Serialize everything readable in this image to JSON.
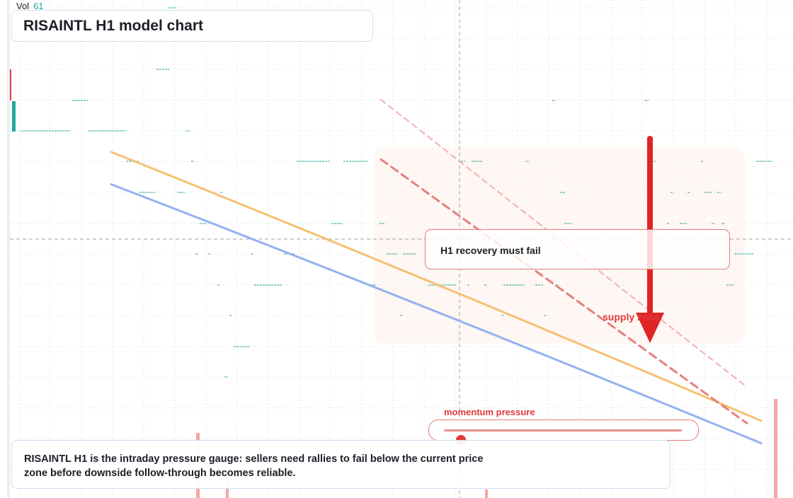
{
  "chart_data": {
    "type": "line",
    "symbol": "RISAINTL",
    "timeframe": "H1",
    "title": "RISAINTL H1 model chart",
    "volume_readout": {
      "label": "Vol",
      "value": 61
    },
    "series": [
      {
        "style": "solid",
        "color": "#f6c070",
        "y": [
          0.695,
          0.155
        ]
      },
      {
        "style": "solid",
        "color": "#94b1f0",
        "y": [
          0.63,
          0.11
        ]
      },
      {
        "style": "dashed",
        "color": "#e57f7f",
        "y": [
          0.68,
          0.15
        ]
      },
      {
        "style": "dashed",
        "color": "#f2b0b0",
        "y": [
          0.8,
          0.225
        ]
      }
    ],
    "annotations": {
      "callout": "H1 recovery must fail",
      "zone_label": "supply zone",
      "arrow_direction": "down",
      "gauge_label": "momentum pressure",
      "gauge_level": 0.07
    },
    "summary": "RISAINTL H1 is the intraday pressure gauge: sellers need rallies to fail below the current price zone before downside follow-through becomes reliable.",
    "grid": true
  },
  "colors": {
    "bull": "#26a69a",
    "bear": "#e5394b",
    "accent": "#e03a3a",
    "panel_border": "#cfe0f2",
    "gauge_border": "#e27d7d"
  },
  "icons": {
    "arrow": "down-arrow-icon"
  }
}
